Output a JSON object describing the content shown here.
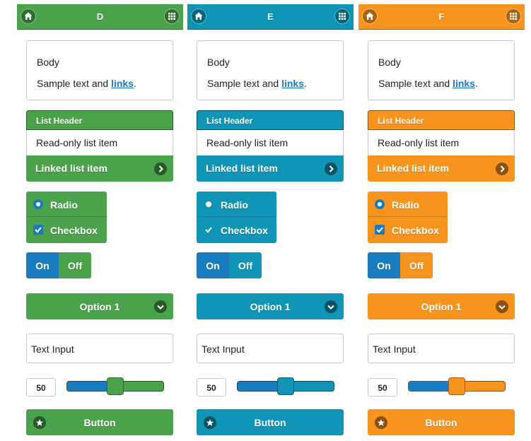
{
  "themes": [
    {
      "key": "d",
      "title": "D",
      "color": "#4aa24a",
      "body": {
        "heading": "Body",
        "text_before": "Sample text and ",
        "link": "links",
        "text_after": "."
      },
      "list": {
        "header": "List Header",
        "readonly": "Read-only list item",
        "linked": "Linked list item"
      },
      "radio_label": "Radio",
      "checkbox_label": "Checkbox",
      "flip": {
        "on": "On",
        "off": "Off"
      },
      "select_value": "Option 1",
      "text_input": "Text Input",
      "slider_value": "50",
      "button_label": "Button"
    },
    {
      "key": "e",
      "title": "E",
      "color": "#1095b6",
      "body": {
        "heading": "Body",
        "text_before": "Sample text and ",
        "link": "links",
        "text_after": "."
      },
      "list": {
        "header": "List Header",
        "readonly": "Read-only list item",
        "linked": "Linked list item"
      },
      "radio_label": "Radio",
      "checkbox_label": "Checkbox",
      "flip": {
        "on": "On",
        "off": "Off"
      },
      "select_value": "Option 1",
      "text_input": "Text Input",
      "slider_value": "50",
      "button_label": "Button"
    },
    {
      "key": "f",
      "title": "F",
      "color": "#f7941d",
      "body": {
        "heading": "Body",
        "text_before": "Sample text and ",
        "link": "links",
        "text_after": "."
      },
      "list": {
        "header": "List Header",
        "readonly": "Read-only list item",
        "linked": "Linked list item"
      },
      "radio_label": "Radio",
      "checkbox_label": "Checkbox",
      "flip": {
        "on": "On",
        "off": "Off"
      },
      "select_value": "Option 1",
      "text_input": "Text Input",
      "slider_value": "50",
      "button_label": "Button"
    }
  ],
  "accent_color": "#1a7bbf",
  "icons": {
    "header_left": "home-icon",
    "header_right": "grid-icon",
    "list_linked": "chevron-right-icon",
    "select": "chevron-down-icon",
    "button": "star-icon"
  },
  "slider_fraction": 0.5
}
